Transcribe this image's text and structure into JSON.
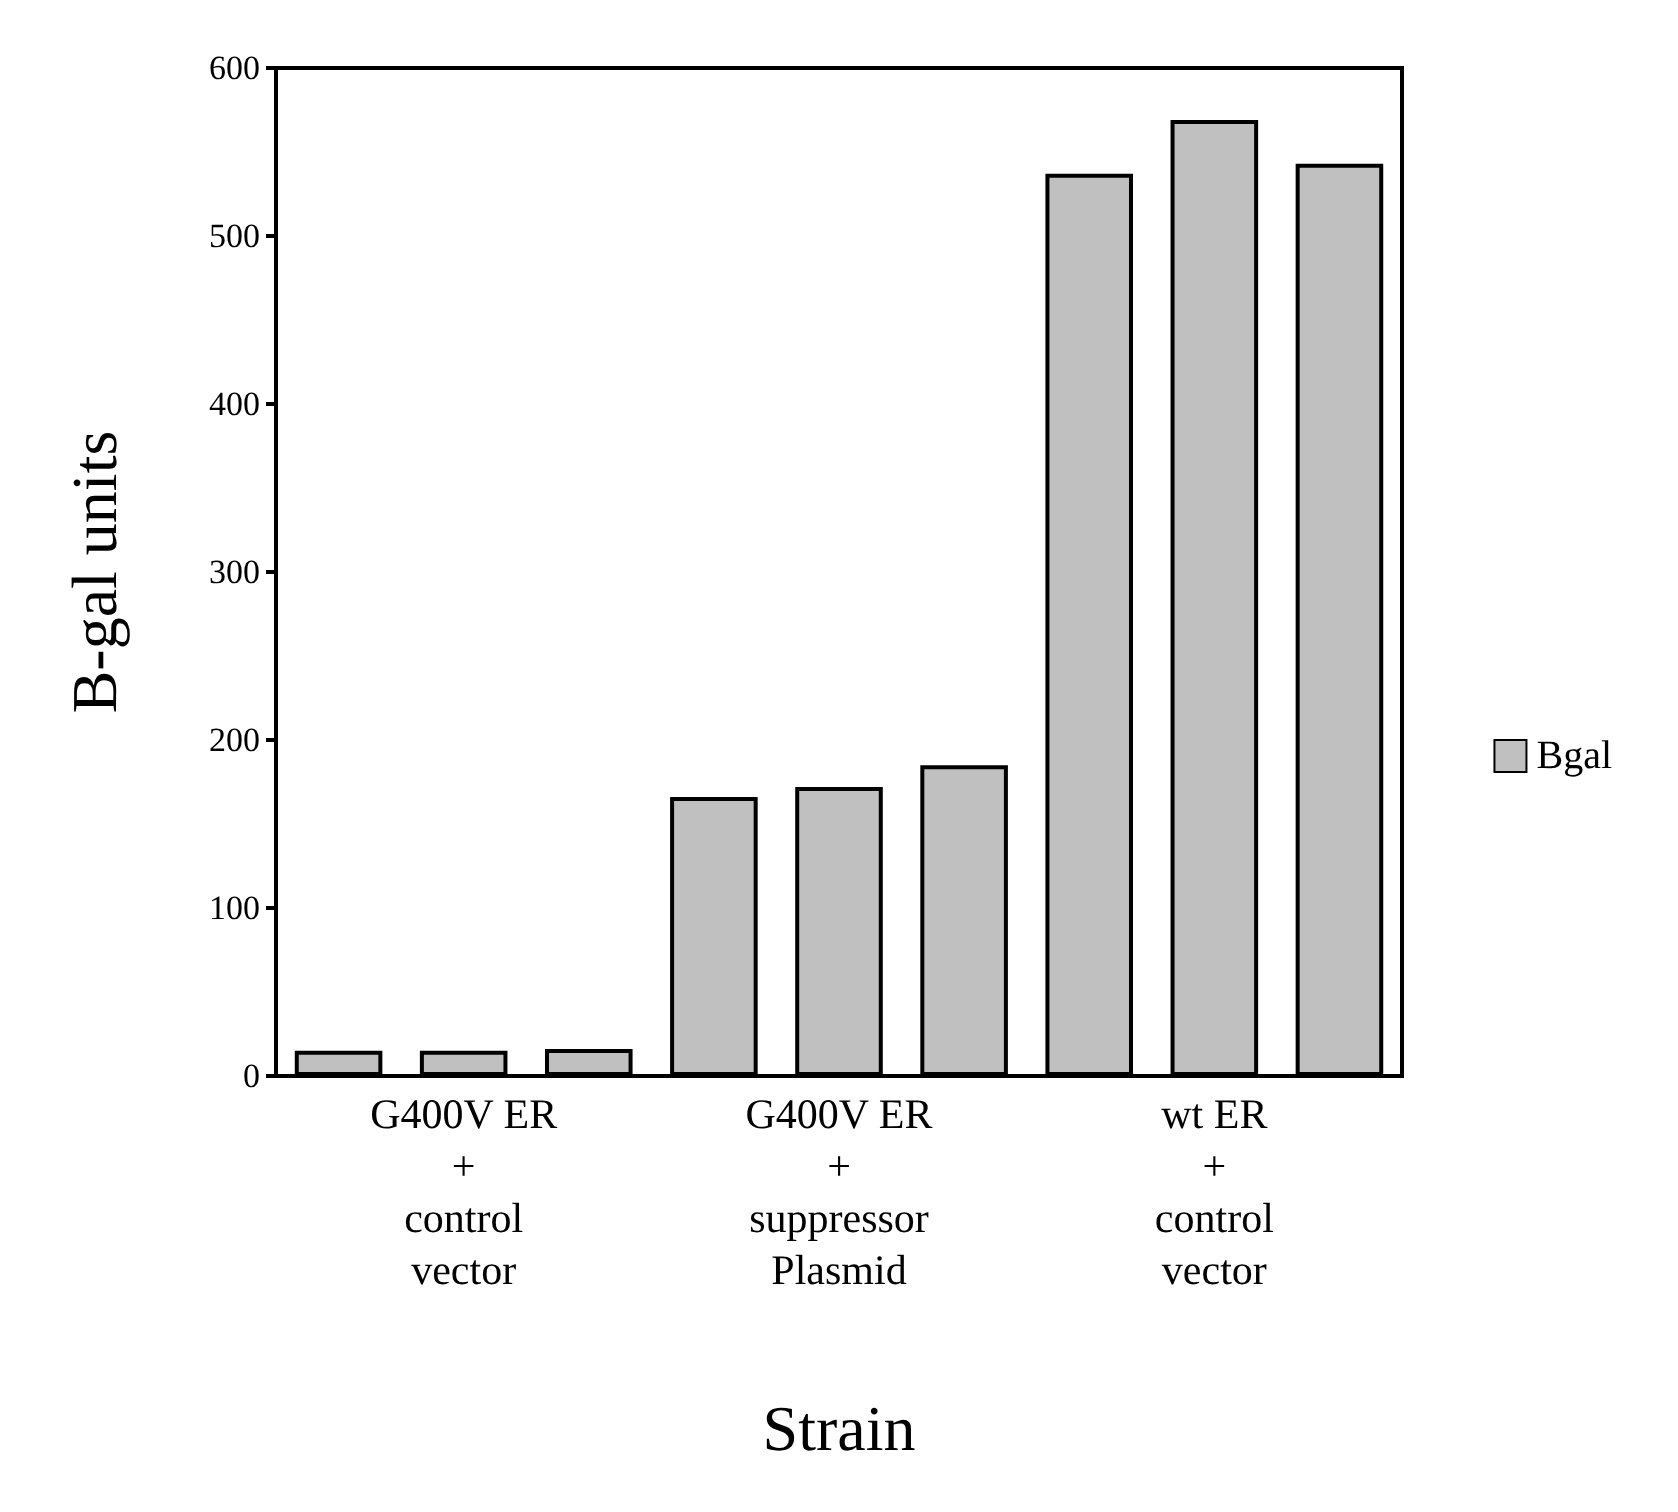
{
  "chart_data": {
    "type": "bar",
    "xlabel": "Strain",
    "ylabel": "B-gal units",
    "categories": [
      null,
      "G400V ER\n+\ncontrol\nvector",
      null,
      null,
      "G400V ER\n+\nsuppressor\nPlasmid",
      null,
      null,
      "wt ER\n+\ncontrol\nvector",
      null
    ],
    "series": [
      {
        "name": "Bgal",
        "color": "#c0c0c0",
        "values": [
          15,
          15,
          16,
          166,
          172,
          185,
          537,
          569,
          543
        ]
      }
    ],
    "ylim": [
      0,
      600
    ],
    "yticks": [
      0,
      100,
      200,
      300,
      400,
      500,
      600
    ],
    "grid": false,
    "legend": "right"
  }
}
